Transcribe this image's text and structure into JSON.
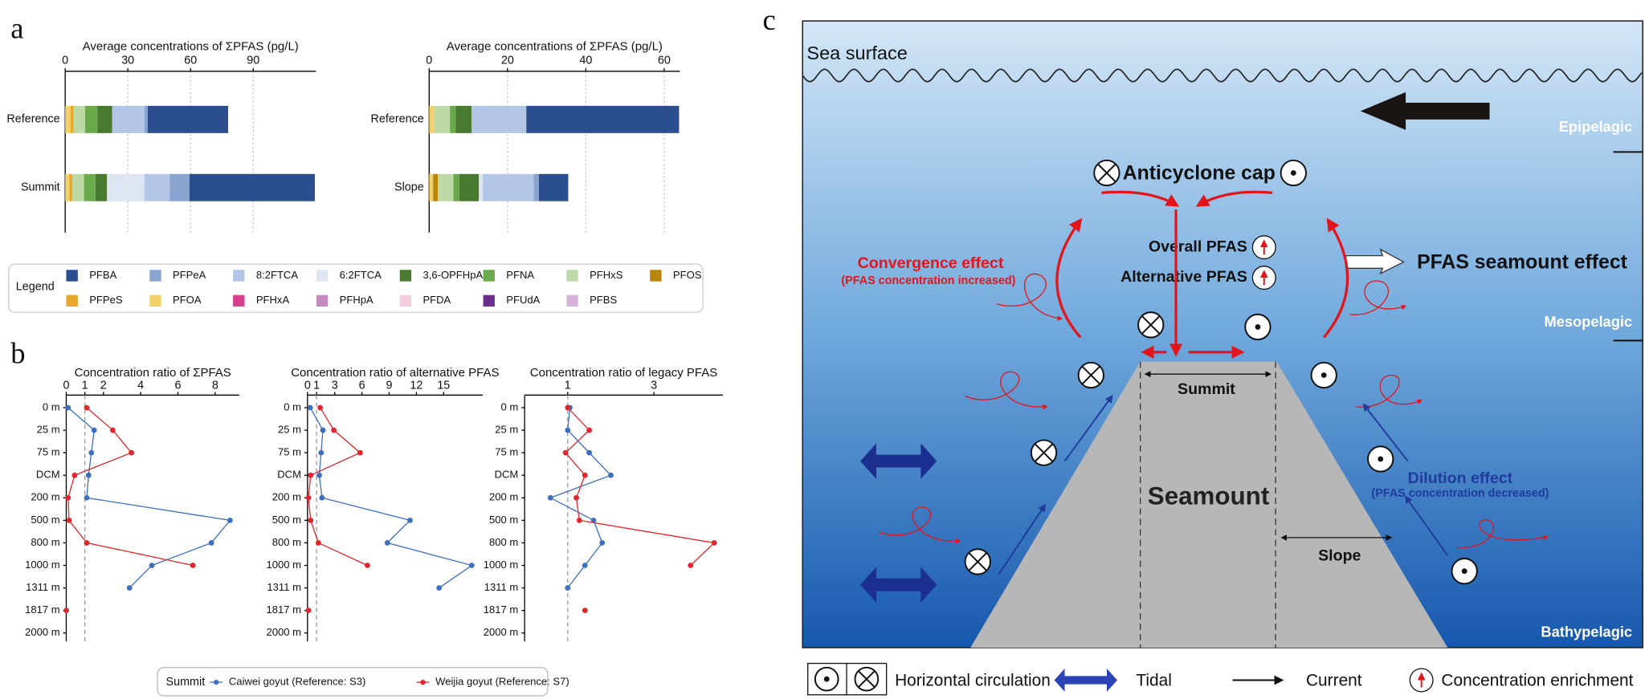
{
  "panel_labels": [
    "a",
    "b",
    "c"
  ],
  "chart_data": [
    {
      "type": "bar",
      "orientation": "horizontal",
      "stacked": true,
      "title": "Average concentrations of ΣPFAS  (pg/L)",
      "categories": [
        "Reference",
        "Summit"
      ],
      "xlim": [
        0,
        120
      ],
      "xticks": [
        0,
        30,
        60,
        90
      ],
      "grid": true,
      "legend_title": "Legend",
      "series": [
        {
          "name": "PFBA",
          "color": "#2b4f8e",
          "values": [
            38.5,
            60
          ]
        },
        {
          "name": "PFPeA",
          "color": "#8aa4d0",
          "values": [
            1.5,
            9.5
          ]
        },
        {
          "name": "8:2FTCA",
          "color": "#b3c6e6",
          "values": [
            15.5,
            12
          ]
        },
        {
          "name": "6:2FTCA",
          "color": "#dde4f2",
          "values": [
            0,
            18
          ]
        },
        {
          "name": "3,6-OPFHpA",
          "color": "#4a7a32",
          "values": [
            7,
            5.5
          ]
        },
        {
          "name": "PFNA",
          "color": "#6aaa4a",
          "values": [
            6,
            5.5
          ]
        },
        {
          "name": "PFHxS",
          "color": "#bcd9a6",
          "values": [
            5.5,
            5.5
          ]
        },
        {
          "name": "PFOS",
          "color": "#b8860b",
          "values": [
            0,
            0
          ]
        },
        {
          "name": "PFPeS",
          "color": "#e8a82a",
          "values": [
            1.5,
            1.5
          ]
        },
        {
          "name": "PFOA",
          "color": "#f2d06b",
          "values": [
            2.5,
            2
          ]
        },
        {
          "name": "PFHxA",
          "color": "#d9418c",
          "values": [
            0,
            0
          ]
        },
        {
          "name": "PFHpA",
          "color": "#c38ac0",
          "values": [
            0,
            0
          ]
        },
        {
          "name": "PFDA",
          "color": "#f2cde0",
          "values": [
            0,
            0
          ]
        },
        {
          "name": "PFUdA",
          "color": "#6a2f8a",
          "values": [
            0,
            0
          ]
        },
        {
          "name": "PFBS",
          "color": "#d6b3db",
          "values": [
            0,
            0
          ]
        }
      ]
    },
    {
      "type": "bar",
      "orientation": "horizontal",
      "stacked": true,
      "title": "Average concentrations of ΣPFAS  (pg/L)",
      "categories": [
        "Reference",
        "Slope"
      ],
      "xlim": [
        0,
        64
      ],
      "xticks": [
        0,
        20,
        40,
        60
      ],
      "grid": true,
      "series": [
        {
          "color": "#2b4f8e",
          "values": [
            39,
            7.5
          ]
        },
        {
          "color": "#8aa4d0",
          "values": [
            0,
            1.3
          ]
        },
        {
          "color": "#b3c6e6",
          "values": [
            14,
            13
          ]
        },
        {
          "color": "#dde4f2",
          "values": [
            0,
            1
          ]
        },
        {
          "color": "#4a7a32",
          "values": [
            4,
            5
          ]
        },
        {
          "color": "#6aaa4a",
          "values": [
            1.5,
            1.5
          ]
        },
        {
          "color": "#bcd9a6",
          "values": [
            4,
            4
          ]
        },
        {
          "color": "#b8860b",
          "values": [
            0,
            1.2
          ]
        },
        {
          "color": "#e8a82a",
          "values": [
            0,
            0
          ]
        },
        {
          "color": "#f2d06b",
          "values": [
            1.3,
            1
          ]
        },
        {
          "color": "#d9418c",
          "values": [
            0,
            0
          ]
        },
        {
          "color": "#c38ac0",
          "values": [
            0,
            0
          ]
        },
        {
          "color": "#f2cde0",
          "values": [
            0,
            0
          ]
        },
        {
          "color": "#6a2f8a",
          "values": [
            0,
            0
          ]
        },
        {
          "color": "#d6b3db",
          "values": [
            0,
            0
          ]
        }
      ]
    },
    {
      "type": "line",
      "orientation": "vertical",
      "title": "Concentration ratio of ΣPFAS",
      "categories": [
        "0 m",
        "25 m",
        "75 m",
        "DCM",
        "200 m",
        "500 m",
        "800 m",
        "1000 m",
        "1311 m",
        "1817 m",
        "2000 m"
      ],
      "xlim": [
        0,
        9.3
      ],
      "xticks": [
        0,
        1,
        2,
        4,
        6,
        8
      ],
      "reference_line": 1,
      "legend_title": "Summit",
      "series": [
        {
          "name": "Caiwei goyut (Reference: S3)",
          "color": "#3d6fc0",
          "values": [
            0.1,
            1.5,
            1.35,
            1.2,
            1.1,
            8.8,
            7.8,
            4.6,
            3.4,
            null,
            null
          ]
        },
        {
          "name": "Weijia goyut (Reference: S7)",
          "color": "#e3262d",
          "values": [
            1.1,
            2.5,
            3.5,
            0.45,
            0.1,
            0.15,
            1.1,
            6.8,
            null,
            0,
            null
          ]
        }
      ]
    },
    {
      "type": "line",
      "orientation": "vertical",
      "title": "Concentration ratio of alternative PFAS",
      "categories": [
        "0 m",
        "25 m",
        "75 m",
        "DCM",
        "200 m",
        "500 m",
        "800 m",
        "1000 m",
        "1311 m",
        "1817 m",
        "2000 m"
      ],
      "xlim": [
        0,
        19.3
      ],
      "xticks": [
        0,
        1,
        3,
        6,
        9,
        12,
        15
      ],
      "reference_line": 1,
      "series": [
        {
          "color": "#3d6fc0",
          "values": [
            0.3,
            1.7,
            1.5,
            1.3,
            1.6,
            11.3,
            8.8,
            18.1,
            14.5,
            null,
            null
          ]
        },
        {
          "color": "#e3262d",
          "values": [
            1.4,
            2.9,
            5.8,
            0.35,
            0.1,
            0.35,
            1.2,
            6.6,
            null,
            0.1,
            null
          ]
        }
      ]
    },
    {
      "type": "line",
      "orientation": "vertical",
      "title": "Concentration ratio of legacy PFAS",
      "categories": [
        "0 m",
        "25 m",
        "75 m",
        "DCM",
        "200 m",
        "500 m",
        "800 m",
        "1000 m",
        "1311 m",
        "1817 m",
        "2000 m"
      ],
      "xlim": [
        0,
        4.6
      ],
      "xticks": [
        1,
        3
      ],
      "reference_line": 1,
      "series": [
        {
          "color": "#3d6fc0",
          "values": [
            1.05,
            1.0,
            1.5,
            2.0,
            0.6,
            1.6,
            1.8,
            1.4,
            1.0,
            null,
            null
          ]
        },
        {
          "color": "#e3262d",
          "values": [
            1.0,
            1.5,
            0.95,
            1.4,
            1.2,
            1.27,
            4.4,
            3.85,
            null,
            1.4,
            null
          ]
        }
      ]
    }
  ],
  "diagram": {
    "sea_surface": "Sea surface",
    "zones": [
      "Epipelagic",
      "Mesopelagic",
      "Bathypelagic"
    ],
    "anticyclone_cap": "Anticyclone cap",
    "overall_pfas": "Overall PFAS",
    "alternative_pfas": "Alternative PFAS",
    "convergence_effect": "Convergence effect",
    "convergence_note": "(PFAS concentration increased)",
    "seamount_effect": "PFAS seamount effect",
    "summit": "Summit",
    "seamount": "Seamount",
    "slope": "Slope",
    "dilution_effect": "Dilution effect",
    "dilution_note": "(PFAS concentration decreased)",
    "legend": [
      "Horizontal circulation",
      "Tidal",
      "Current",
      "Concentration enrichment"
    ]
  }
}
